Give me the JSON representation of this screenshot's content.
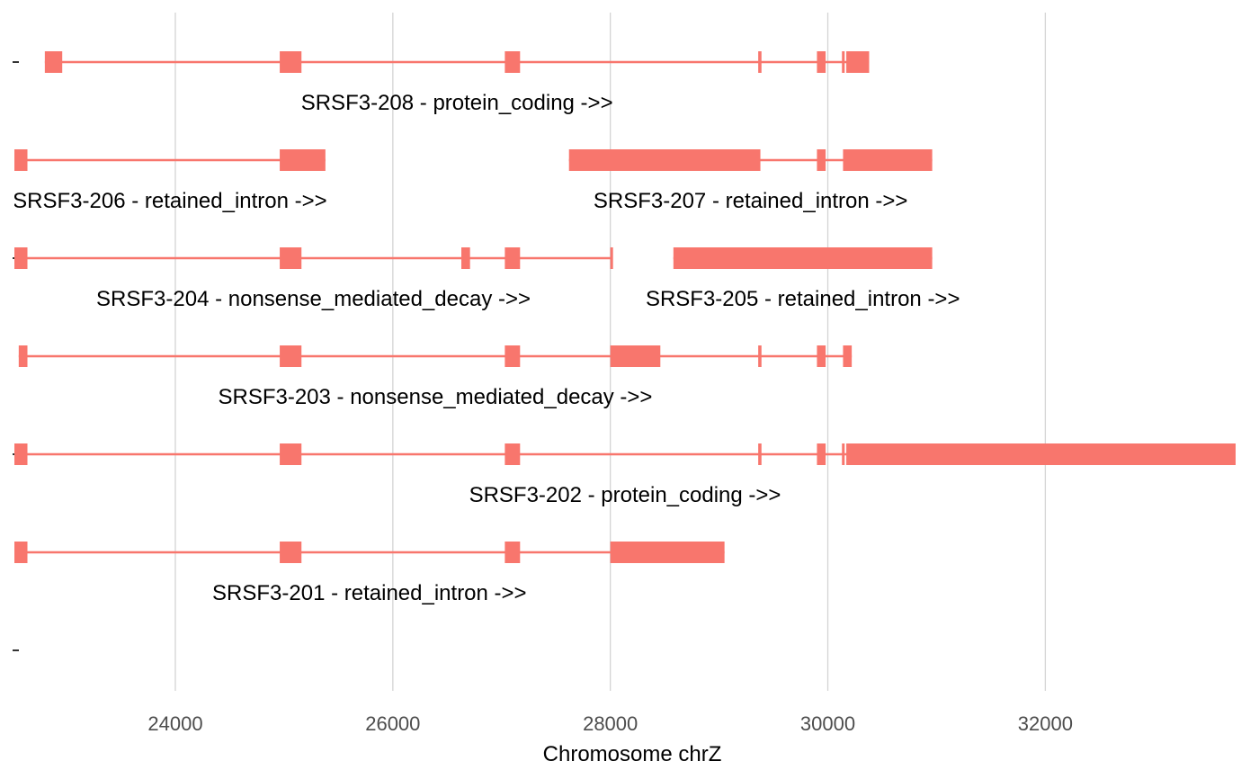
{
  "chart_data": {
    "type": "gene-model",
    "xlabel": "Chromosome chrZ",
    "ylabel": "",
    "xlim": [
      22520,
      33750
    ],
    "x_ticks": [
      24000,
      26000,
      28000,
      30000,
      32000
    ],
    "x_tick_labels": [
      "24000",
      "26000",
      "28000",
      "30000",
      "32000"
    ],
    "y_ticks": [
      1,
      3,
      5,
      7
    ],
    "y_tick_labels": [
      "-",
      "-",
      "-",
      "-"
    ],
    "grid": "vertical-major",
    "color": "#F8766D",
    "transcripts": [
      {
        "label": "SRSF3-208 - protein_coding  ->>",
        "row": 7,
        "start": 22800,
        "end": 30380,
        "exons": [
          [
            22800,
            22960
          ],
          [
            24960,
            25160
          ],
          [
            27030,
            27170
          ],
          [
            29360,
            29390
          ],
          [
            29900,
            29980
          ],
          [
            30130,
            30150
          ],
          [
            30170,
            30380
          ]
        ]
      },
      {
        "label": "SRSF3-206 - retained_intron  ->>",
        "row": 6,
        "start": 22520,
        "end": 25380,
        "exons": [
          [
            22520,
            22640
          ],
          [
            24960,
            25380
          ]
        ]
      },
      {
        "label": "SRSF3-207 - retained_intron  ->>",
        "row": 6,
        "start": 27620,
        "end": 30960,
        "exons": [
          [
            27620,
            29380
          ],
          [
            29900,
            29980
          ],
          [
            30140,
            30960
          ]
        ]
      },
      {
        "label": "SRSF3-204 - nonsense_mediated_decay  ->>",
        "row": 5,
        "start": 22520,
        "end": 28020,
        "exons": [
          [
            22520,
            22640
          ],
          [
            24960,
            25160
          ],
          [
            26630,
            26710
          ],
          [
            27030,
            27170
          ],
          [
            28000,
            28020
          ]
        ]
      },
      {
        "label": "SRSF3-205 - retained_intron  ->>",
        "row": 5,
        "start": 28580,
        "end": 30960,
        "exons": [
          [
            28580,
            30960
          ]
        ]
      },
      {
        "label": "SRSF3-203 - nonsense_mediated_decay  ->>",
        "row": 4,
        "start": 22560,
        "end": 30220,
        "exons": [
          [
            22560,
            22640
          ],
          [
            24960,
            25160
          ],
          [
            27030,
            27170
          ],
          [
            28000,
            28020
          ],
          [
            28020,
            28460
          ],
          [
            29360,
            29390
          ],
          [
            29900,
            29980
          ],
          [
            30140,
            30220
          ]
        ]
      },
      {
        "label": "SRSF3-202 - protein_coding  ->>",
        "row": 3,
        "start": 22520,
        "end": 33750,
        "exons": [
          [
            22520,
            22640
          ],
          [
            24960,
            25160
          ],
          [
            27030,
            27170
          ],
          [
            29360,
            29390
          ],
          [
            29900,
            29980
          ],
          [
            30130,
            30150
          ],
          [
            30170,
            33750
          ]
        ]
      },
      {
        "label": "SRSF3-201 - retained_intron  ->>",
        "row": 2,
        "start": 22520,
        "end": 29050,
        "exons": [
          [
            22520,
            22640
          ],
          [
            24960,
            25160
          ],
          [
            27030,
            27170
          ],
          [
            28000,
            29050
          ]
        ]
      }
    ]
  }
}
